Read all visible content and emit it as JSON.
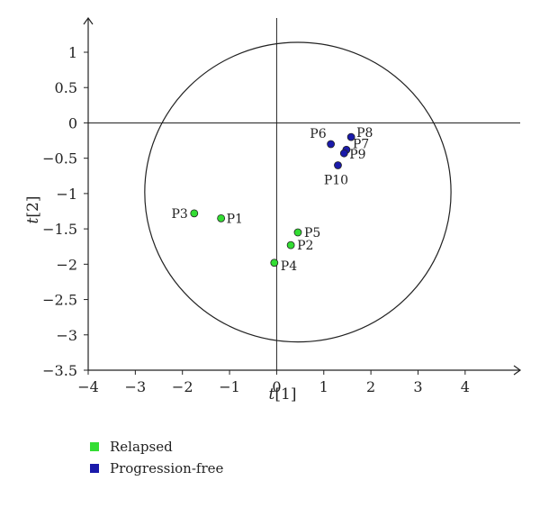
{
  "chart_data": {
    "type": "scatter",
    "title": "",
    "xlabel": {
      "var": "t",
      "index": "[1]"
    },
    "ylabel": {
      "var": "t",
      "index": "[2]"
    },
    "xlim": [
      -4,
      5
    ],
    "ylim": [
      -3.5,
      1.5
    ],
    "xticks": [
      -4,
      -3,
      -2,
      -1,
      0,
      1,
      2,
      3,
      4
    ],
    "yticks": [
      -3.5,
      -3,
      -2.5,
      -2,
      -1.5,
      -1,
      -0.5,
      0,
      0.5,
      1
    ],
    "ellipse": {
      "cx": 0.45,
      "cy": -0.98,
      "rx": 3.25,
      "ry": 2.12
    },
    "series": [
      {
        "name": "Relapsed",
        "color": "#33dd33",
        "points": [
          {
            "label": "P1",
            "x": -1.18,
            "y": -1.35
          },
          {
            "label": "P2",
            "x": 0.3,
            "y": -1.73
          },
          {
            "label": "P3",
            "x": -1.75,
            "y": -1.28
          },
          {
            "label": "P4",
            "x": -0.05,
            "y": -1.98
          },
          {
            "label": "P5",
            "x": 0.45,
            "y": -1.55
          }
        ]
      },
      {
        "name": "Progression-free",
        "color": "#1a1aaa",
        "points": [
          {
            "label": "P6",
            "x": 1.15,
            "y": -0.3
          },
          {
            "label": "P7",
            "x": 1.48,
            "y": -0.38
          },
          {
            "label": "P8",
            "x": 1.58,
            "y": -0.2
          },
          {
            "label": "P9",
            "x": 1.43,
            "y": -0.43
          },
          {
            "label": "P10",
            "x": 1.3,
            "y": -0.6
          }
        ]
      }
    ],
    "legend_position": "bottom-left"
  }
}
